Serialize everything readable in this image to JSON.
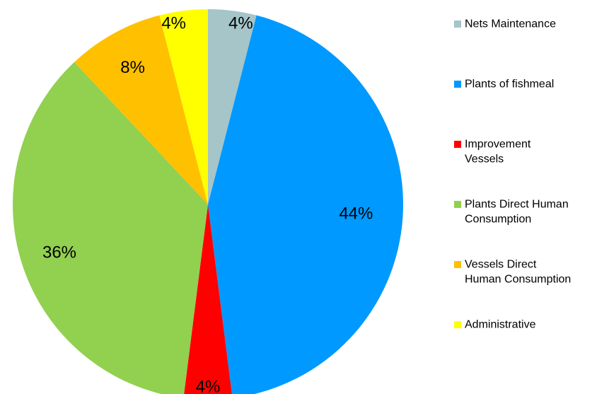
{
  "chart_data": {
    "type": "pie",
    "start_angle_deg": 0,
    "direction": "clockwise",
    "legend_position": "right",
    "slices": [
      {
        "name": "Nets Maintenance",
        "legend_lines": [
          "Nets Maintenance"
        ],
        "value": 4,
        "label": "4%",
        "color": "#a5c5c9"
      },
      {
        "name": "Plants of fishmeal",
        "legend_lines": [
          "Plants of fishmeal"
        ],
        "value": 44,
        "label": "44%",
        "color": "#0099ff"
      },
      {
        "name": "Improvement Vessels",
        "legend_lines": [
          "Improvement",
          "Vessels"
        ],
        "value": 4,
        "label": "4%",
        "color": "#ff0000"
      },
      {
        "name": "Plants Direct Human Consumption",
        "legend_lines": [
          "Plants Direct Human",
          "Consumption"
        ],
        "value": 36,
        "label": "36%",
        "color": "#92d050"
      },
      {
        "name": "Vessels Direct Human Consumption",
        "legend_lines": [
          " Vessels Direct",
          "Human Consumption"
        ],
        "value": 8,
        "label": "8%",
        "color": "#ffc000"
      },
      {
        "name": "Administrative",
        "legend_lines": [
          "Administrative"
        ],
        "value": 4,
        "label": "4%",
        "color": "#ffff00"
      }
    ]
  }
}
